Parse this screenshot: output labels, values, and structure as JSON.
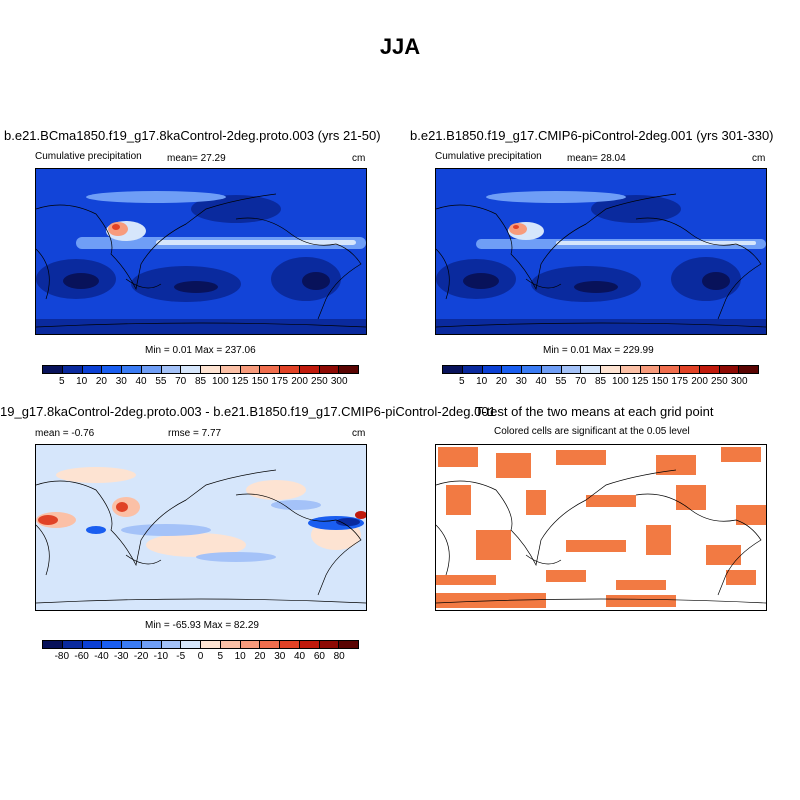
{
  "title": "JJA",
  "panels": [
    {
      "title": "b.e21.BCma1850.f19_g17.8kaControl-2deg.proto.003 (yrs 21-50)",
      "left_label": "Cumulative precipitation",
      "mean_label": "mean=  27.29",
      "unit": "cm",
      "minmax": "Min =   0.01 Max = 237.06"
    },
    {
      "title": "b.e21.B1850.f19_g17.CMIP6-piControl-2deg.001 (yrs 301-330)",
      "left_label": "Cumulative precipitation",
      "mean_label": "mean=  28.04",
      "unit": "cm",
      "minmax": "Min =   0.01 Max = 229.99"
    },
    {
      "title": "19_g17.8kaControl-2deg.proto.003 - b.e21.B1850.f19_g17.CMIP6-piControl-2deg.001",
      "left_label": "mean =  -0.76",
      "mean_label": "rmse =   7.77",
      "unit": "cm",
      "minmax": "Min = -65.93 Max =  82.29"
    },
    {
      "title": "T-test of the two means at each grid point",
      "subtitle": "Colored cells are significant at the 0.05 level"
    }
  ],
  "colorbars": {
    "precip": {
      "labels": [
        "5",
        "10",
        "20",
        "30",
        "40",
        "55",
        "70",
        "85",
        "100",
        "125",
        "150",
        "175",
        "200",
        "250",
        "300"
      ],
      "colors": [
        "#08125a",
        "#0a2a9e",
        "#0c40d4",
        "#1a5ef0",
        "#3b7cf4",
        "#6f9ef6",
        "#a4c2f8",
        "#d6e6fb",
        "#fde3d2",
        "#fbc0a6",
        "#f79b7c",
        "#f06e4e",
        "#e04226",
        "#c01a0c",
        "#8e0a04",
        "#5a0402"
      ]
    },
    "diff": {
      "labels": [
        "-80",
        "-60",
        "-40",
        "-30",
        "-20",
        "-10",
        "-5",
        "0",
        "5",
        "10",
        "20",
        "30",
        "40",
        "60",
        "80"
      ],
      "colors": [
        "#08125a",
        "#0a2a9e",
        "#0c40d4",
        "#1a5ef0",
        "#3b7cf4",
        "#6f9ef6",
        "#a4c2f8",
        "#d6e6fb",
        "#fde3d2",
        "#fbc0a6",
        "#f79b7c",
        "#f06e4e",
        "#e04226",
        "#c01a0c",
        "#8e0a04",
        "#5a0402"
      ]
    }
  },
  "colors": {
    "significant_cell": "#f27a43",
    "diff_background": "#d6e6fb",
    "precip_background": "#0c40d4"
  }
}
